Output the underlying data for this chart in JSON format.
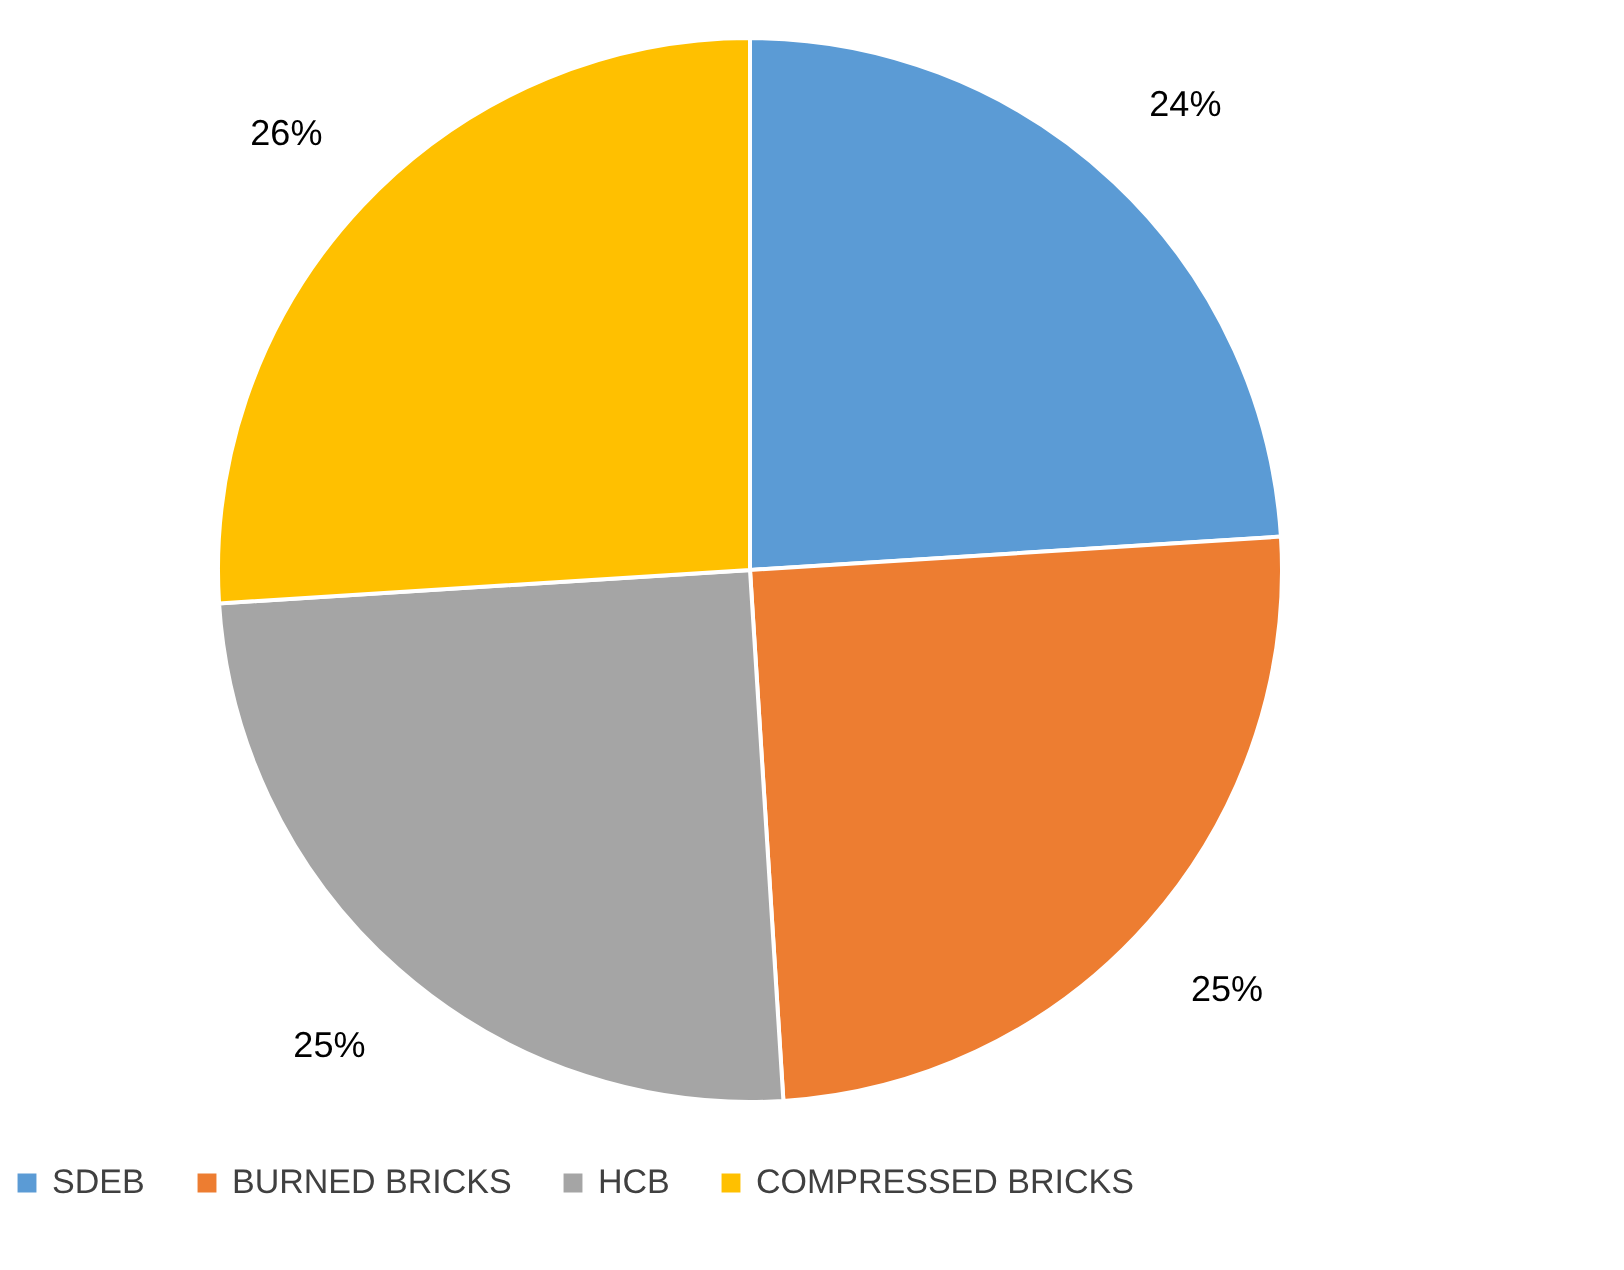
{
  "chart_data": {
    "type": "pie",
    "categories": [
      "SDEB",
      "BURNED BRICKS",
      "HCB",
      "COMPRESSED BRICKS"
    ],
    "values": [
      24,
      25,
      25,
      26
    ],
    "colors": [
      "#5b9bd5",
      "#ed7d31",
      "#a5a5a5",
      "#ffc000"
    ],
    "value_labels": [
      "24%",
      "25%",
      "25%",
      "26%"
    ],
    "legend": "bottom"
  }
}
